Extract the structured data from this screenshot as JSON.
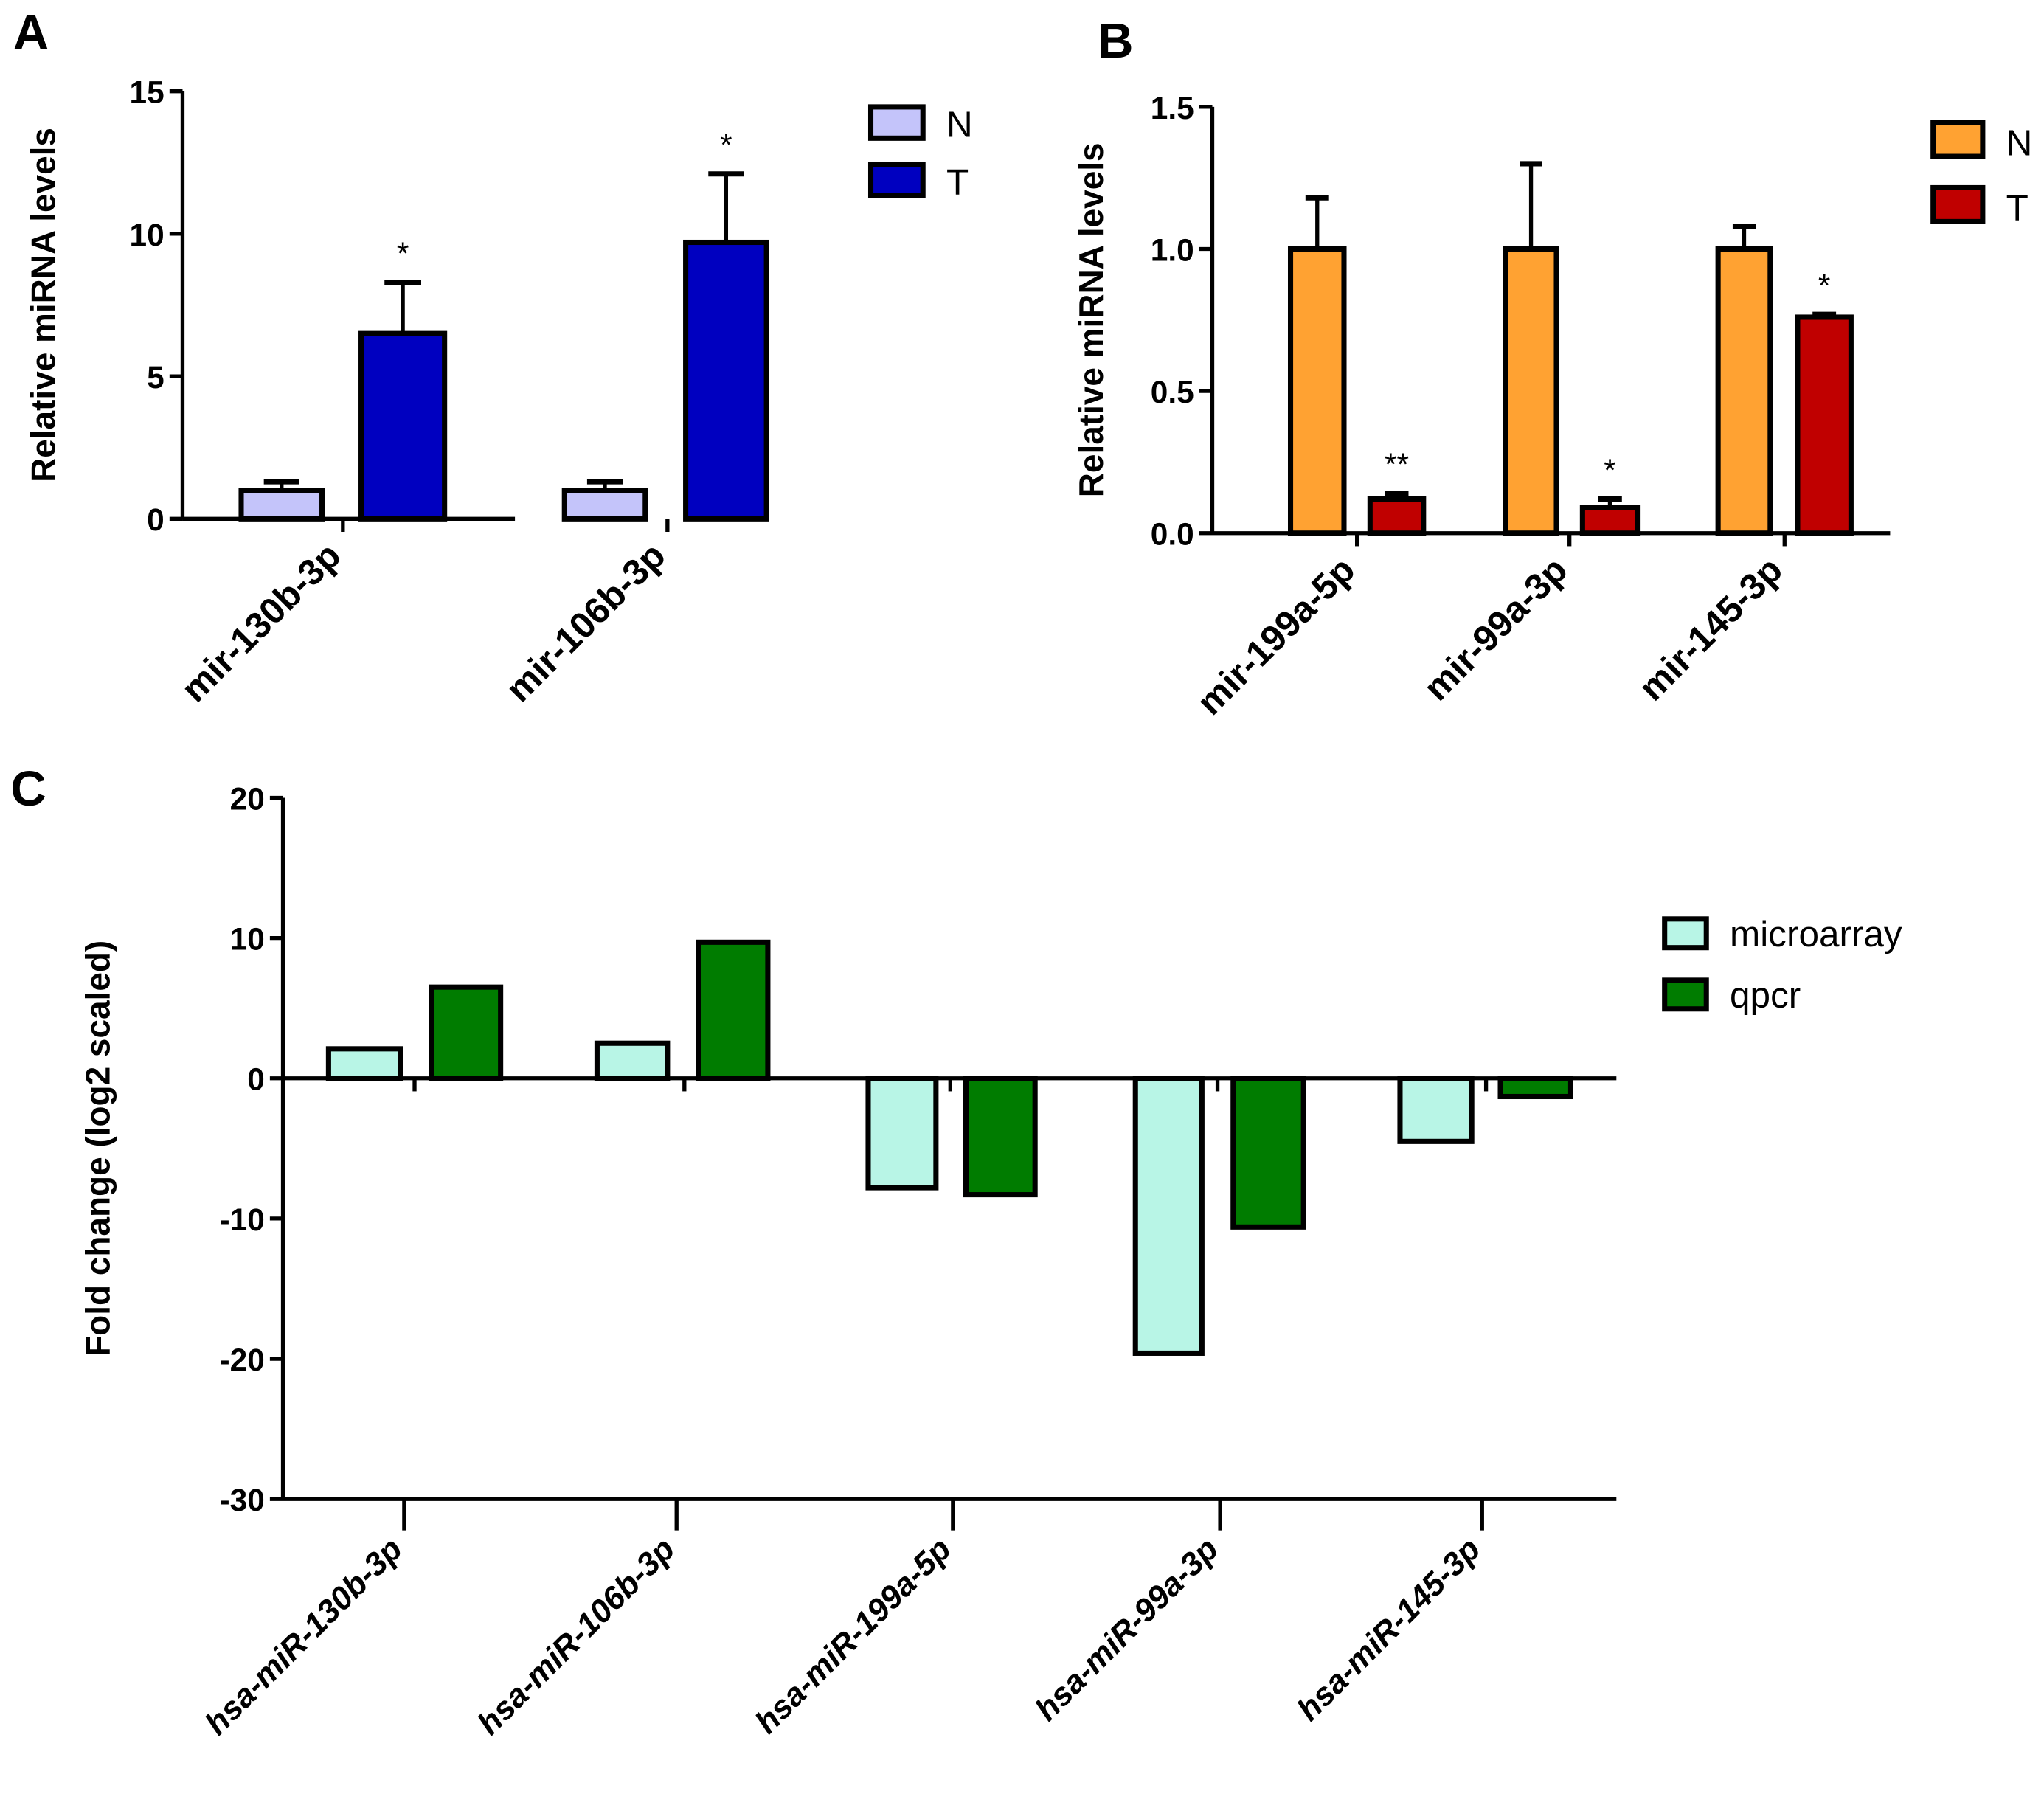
{
  "chart_data": [
    {
      "panel": "A",
      "type": "bar",
      "ylabel": "Relative miRNA levels",
      "ylim": [
        0,
        15
      ],
      "yticks": [
        0,
        5,
        10,
        15
      ],
      "categories": [
        "mir-130b-3p",
        "mir-106b-3p"
      ],
      "series": [
        {
          "name": "N",
          "color": "#c4c4fa",
          "values": [
            1.0,
            1.0
          ],
          "err": [
            0.3,
            0.3
          ],
          "sig": [
            "",
            ""
          ]
        },
        {
          "name": "T",
          "color": "#0000c0",
          "values": [
            6.5,
            9.7
          ],
          "err": [
            1.8,
            2.4
          ],
          "sig": [
            "*",
            "*"
          ]
        }
      ]
    },
    {
      "panel": "B",
      "type": "bar",
      "ylabel": "Relative miRNA levels",
      "ylim": [
        0,
        1.5
      ],
      "yticks": [
        "0.0",
        "0.5",
        "1.0",
        "1.5"
      ],
      "categories": [
        "mir-199a-5p",
        "mir-99a-3p",
        "mir-145-3p"
      ],
      "series": [
        {
          "name": "N",
          "color": "#ffa232",
          "values": [
            1.0,
            1.0,
            1.0
          ],
          "err": [
            0.18,
            0.3,
            0.08
          ],
          "sig": [
            "",
            "",
            ""
          ]
        },
        {
          "name": "T",
          "color": "#c00000",
          "values": [
            0.12,
            0.09,
            0.76
          ],
          "err": [
            0.02,
            0.03,
            0.01
          ],
          "sig": [
            "**",
            "*",
            "*"
          ]
        }
      ]
    },
    {
      "panel": "C",
      "type": "bar",
      "ylabel": "Fold change (log2 scaled)",
      "ylim": [
        -30,
        20
      ],
      "yticks": [
        -30,
        -20,
        -10,
        0,
        10,
        20
      ],
      "categories": [
        "hsa-miR-130b-3p",
        "hsa-miR-106b-3p",
        "hsa-miR-199a-5p",
        "hsa-miR-99a-3p",
        "hsa-miR-145-3p"
      ],
      "series": [
        {
          "name": "microarray",
          "color": "#b8f5e6",
          "values": [
            2.1,
            2.5,
            -7.8,
            -19.6,
            -4.5
          ]
        },
        {
          "name": "qpcr",
          "color": "#007c00",
          "values": [
            6.5,
            9.7,
            -8.3,
            -10.6,
            -1.3
          ]
        }
      ]
    }
  ]
}
